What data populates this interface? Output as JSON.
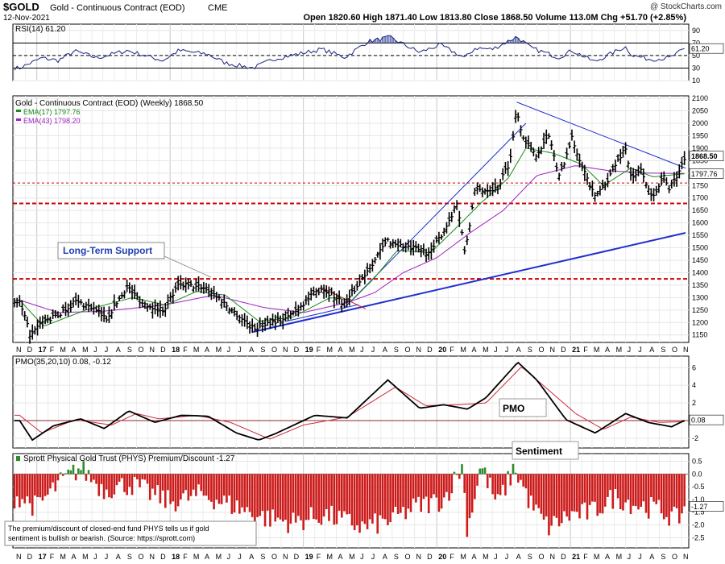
{
  "header": {
    "symbol": "$GOLD",
    "name": "Gold - Continuous Contract (EOD)",
    "exchange": "CME",
    "date": "12-Nov-2021",
    "watermark": "@ StockCharts.com",
    "ohlc": "Open 1820.60  High 1871.40  Low 1813.80  Close 1868.50  Volume 113.0M  Chg +51.70 (+2.85%)"
  },
  "rsi_panel": {
    "label": "RSI(14) 61.20",
    "ticks": [
      "90",
      "70",
      "50",
      "30",
      "10"
    ],
    "current_label": "61.20"
  },
  "price_panel": {
    "title": "Gold - Continuous Contract (EOD) (Weekly) 1868.50",
    "ema17_label": "EMA(17) 1797.76",
    "ema43_label": "EMA(43) 1798.20",
    "ticks": [
      "2100",
      "2050",
      "2000",
      "1950",
      "1900",
      "1850",
      "1800",
      "1750",
      "1700",
      "1650",
      "1600",
      "1550",
      "1500",
      "1450",
      "1400",
      "1350",
      "1300",
      "1250",
      "1200",
      "1150"
    ],
    "price_tag": "1868.50",
    "ema_tag": "1797.76",
    "annotation": "Long-Term Support"
  },
  "time_axis": {
    "labels": [
      "N",
      "D",
      "17",
      "F",
      "M",
      "A",
      "M",
      "J",
      "J",
      "A",
      "S",
      "O",
      "N",
      "D",
      "18",
      "F",
      "M",
      "A",
      "M",
      "J",
      "J",
      "A",
      "S",
      "O",
      "N",
      "D",
      "19",
      "F",
      "M",
      "A",
      "M",
      "J",
      "J",
      "A",
      "S",
      "O",
      "N",
      "D",
      "20",
      "F",
      "M",
      "A",
      "M",
      "J",
      "J",
      "A",
      "S",
      "O",
      "N",
      "D",
      "21",
      "F",
      "M",
      "A",
      "M",
      "J",
      "J",
      "A",
      "S",
      "O",
      "N"
    ]
  },
  "pmo_panel": {
    "label": "PMO(35,20,10) 0.08, -0.12",
    "ticks": [
      "6",
      "4",
      "2",
      "0",
      "-2"
    ],
    "current_label": "0.08",
    "annotation": "PMO"
  },
  "sentiment_panel": {
    "label": "Sprott Physical Gold Trust (PHYS) Premium/Discount -1.27",
    "ticks": [
      "0.5",
      "0.0",
      "-0.5",
      "-1.0",
      "-1.5",
      "-2.0",
      "-2.5"
    ],
    "current_label": "-1.27",
    "annotation": "Sentiment",
    "note_line1": "The premium/discount of closed-end fund PHYS tells us if gold",
    "note_line2": "sentiment is bullish or bearish. (Source: https://sprott.com)"
  },
  "colors": {
    "ema17": "#1a8a1a",
    "ema43": "#a020c0",
    "rsi_line": "#1a237e",
    "trend_line": "#1f2fcf",
    "support_red": "#cc0000",
    "pmo_black": "#000000",
    "pmo_signal": "#cc2a3a",
    "bar_red": "#cc1b1b",
    "bar_green": "#2e8b2e"
  },
  "chart_data": {
    "type": "ohlc",
    "x_range": [
      "2016-11-01",
      "2021-11-12"
    ],
    "y_range_price": [
      1120,
      2100
    ],
    "horizontal_levels": [
      1760,
      1678,
      1375
    ],
    "price_anchors": [
      [
        "2016-11-15",
        1280
      ],
      [
        "2016-12-15",
        1145
      ],
      [
        "2017-01-15",
        1200
      ],
      [
        "2017-03-01",
        1230
      ],
      [
        "2017-04-15",
        1285
      ],
      [
        "2017-06-01",
        1260
      ],
      [
        "2017-07-10",
        1215
      ],
      [
        "2017-09-05",
        1345
      ],
      [
        "2017-10-15",
        1280
      ],
      [
        "2017-12-12",
        1250
      ],
      [
        "2018-01-25",
        1350
      ],
      [
        "2018-04-10",
        1340
      ],
      [
        "2018-05-20",
        1290
      ],
      [
        "2018-08-16",
        1175
      ],
      [
        "2018-10-05",
        1205
      ],
      [
        "2018-11-15",
        1215
      ],
      [
        "2019-01-10",
        1290
      ],
      [
        "2019-02-20",
        1340
      ],
      [
        "2019-04-25",
        1275
      ],
      [
        "2019-06-25",
        1410
      ],
      [
        "2019-08-20",
        1530
      ],
      [
        "2019-10-10",
        1500
      ],
      [
        "2019-12-15",
        1480
      ],
      [
        "2020-01-25",
        1580
      ],
      [
        "2020-02-25",
        1680
      ],
      [
        "2020-03-18",
        1480
      ],
      [
        "2020-04-15",
        1730
      ],
      [
        "2020-06-15",
        1740
      ],
      [
        "2020-07-20",
        1850
      ],
      [
        "2020-08-07",
        2070
      ],
      [
        "2020-08-20",
        1960
      ],
      [
        "2020-09-25",
        1870
      ],
      [
        "2020-11-05",
        1950
      ],
      [
        "2020-11-30",
        1780
      ],
      [
        "2021-01-05",
        1940
      ],
      [
        "2021-03-08",
        1700
      ],
      [
        "2021-04-15",
        1780
      ],
      [
        "2021-05-31",
        1905
      ],
      [
        "2021-06-18",
        1770
      ],
      [
        "2021-07-15",
        1815
      ],
      [
        "2021-08-09",
        1700
      ],
      [
        "2021-09-15",
        1790
      ],
      [
        "2021-09-29",
        1735
      ],
      [
        "2021-10-20",
        1790
      ],
      [
        "2021-11-12",
        1868.5
      ]
    ],
    "rsi_anchors": [
      [
        "2016-11-15",
        30
      ],
      [
        "2017-01-15",
        46
      ],
      [
        "2017-03-01",
        42
      ],
      [
        "2017-04-15",
        57
      ],
      [
        "2017-06-15",
        46
      ],
      [
        "2017-09-05",
        58
      ],
      [
        "2017-12-12",
        42
      ],
      [
        "2018-01-25",
        58
      ],
      [
        "2018-04-15",
        52
      ],
      [
        "2018-06-01",
        38
      ],
      [
        "2018-08-16",
        30
      ],
      [
        "2018-10-15",
        45
      ],
      [
        "2019-02-20",
        60
      ],
      [
        "2019-04-25",
        47
      ],
      [
        "2019-06-25",
        72
      ],
      [
        "2019-08-25",
        79
      ],
      [
        "2019-11-15",
        55
      ],
      [
        "2020-01-10",
        67
      ],
      [
        "2020-03-18",
        46
      ],
      [
        "2020-04-15",
        62
      ],
      [
        "2020-06-01",
        60
      ],
      [
        "2020-08-07",
        80
      ],
      [
        "2020-09-15",
        62
      ],
      [
        "2020-11-30",
        47
      ],
      [
        "2021-01-05",
        58
      ],
      [
        "2021-03-08",
        40
      ],
      [
        "2021-05-31",
        64
      ],
      [
        "2021-06-20",
        50
      ],
      [
        "2021-08-09",
        44
      ],
      [
        "2021-09-29",
        46
      ],
      [
        "2021-11-12",
        61.2
      ]
    ],
    "ema17_anchors": [
      [
        "2016-11-15",
        1290
      ],
      [
        "2017-01-20",
        1185
      ],
      [
        "2017-05-15",
        1250
      ],
      [
        "2017-09-20",
        1300
      ],
      [
        "2017-12-20",
        1270
      ],
      [
        "2018-03-15",
        1325
      ],
      [
        "2018-06-01",
        1310
      ],
      [
        "2018-09-01",
        1205
      ],
      [
        "2018-12-01",
        1220
      ],
      [
        "2019-03-15",
        1300
      ],
      [
        "2019-05-15",
        1290
      ],
      [
        "2019-07-15",
        1380
      ],
      [
        "2019-09-15",
        1490
      ],
      [
        "2019-12-15",
        1480
      ],
      [
        "2020-03-01",
        1590
      ],
      [
        "2020-05-01",
        1680
      ],
      [
        "2020-07-15",
        1780
      ],
      [
        "2020-09-01",
        1900
      ],
      [
        "2020-11-15",
        1880
      ],
      [
        "2021-02-01",
        1835
      ],
      [
        "2021-04-01",
        1750
      ],
      [
        "2021-06-15",
        1820
      ],
      [
        "2021-08-15",
        1785
      ],
      [
        "2021-11-12",
        1797.76
      ]
    ],
    "ema43_anchors": [
      [
        "2016-11-15",
        1290
      ],
      [
        "2017-03-01",
        1240
      ],
      [
        "2017-07-01",
        1245
      ],
      [
        "2017-12-15",
        1270
      ],
      [
        "2018-05-01",
        1310
      ],
      [
        "2018-09-15",
        1260
      ],
      [
        "2019-01-01",
        1240
      ],
      [
        "2019-05-01",
        1280
      ],
      [
        "2019-07-15",
        1320
      ],
      [
        "2019-10-01",
        1400
      ],
      [
        "2020-01-01",
        1460
      ],
      [
        "2020-04-01",
        1560
      ],
      [
        "2020-07-01",
        1650
      ],
      [
        "2020-10-01",
        1790
      ],
      [
        "2021-01-15",
        1830
      ],
      [
        "2021-04-15",
        1810
      ],
      [
        "2021-08-01",
        1800
      ],
      [
        "2021-11-12",
        1798.2
      ]
    ],
    "pmo_anchors": [
      [
        "2016-11-15",
        0
      ],
      [
        "2016-12-20",
        -2.2
      ],
      [
        "2017-02-15",
        -0.6
      ],
      [
        "2017-05-01",
        0.2
      ],
      [
        "2017-07-05",
        -0.9
      ],
      [
        "2017-09-10",
        1.1
      ],
      [
        "2017-11-20",
        -0.2
      ],
      [
        "2018-02-01",
        0.6
      ],
      [
        "2018-04-15",
        0.5
      ],
      [
        "2018-07-01",
        -1.4
      ],
      [
        "2018-09-01",
        -2.2
      ],
      [
        "2018-10-15",
        -1.5
      ],
      [
        "2019-02-01",
        0.6
      ],
      [
        "2019-05-01",
        0.3
      ],
      [
        "2019-08-20",
        4.6
      ],
      [
        "2019-11-15",
        1.4
      ],
      [
        "2020-01-20",
        1.8
      ],
      [
        "2020-03-25",
        1.3
      ],
      [
        "2020-05-15",
        2.6
      ],
      [
        "2020-08-10",
        6.6
      ],
      [
        "2020-10-01",
        4.6
      ],
      [
        "2020-12-20",
        0.1
      ],
      [
        "2021-03-10",
        -1.4
      ],
      [
        "2021-06-01",
        0.8
      ],
      [
        "2021-08-01",
        -0.2
      ],
      [
        "2021-10-05",
        -0.7
      ],
      [
        "2021-11-12",
        0.08
      ]
    ],
    "pmo_signal_anchors": [
      [
        "2016-11-15",
        0.6
      ],
      [
        "2017-01-15",
        -1.4
      ],
      [
        "2017-04-15",
        0.1
      ],
      [
        "2017-07-25",
        -0.5
      ],
      [
        "2017-10-01",
        0.8
      ],
      [
        "2017-12-01",
        0.2
      ],
      [
        "2018-03-15",
        0.6
      ],
      [
        "2018-06-15",
        -0.2
      ],
      [
        "2018-10-01",
        -2.1
      ],
      [
        "2019-01-01",
        -0.5
      ],
      [
        "2019-05-01",
        0.4
      ],
      [
        "2019-09-10",
        3.8
      ],
      [
        "2019-12-01",
        1.7
      ],
      [
        "2020-03-01",
        1.8
      ],
      [
        "2020-05-15",
        2.0
      ],
      [
        "2020-08-20",
        6.1
      ],
      [
        "2020-11-01",
        3.5
      ],
      [
        "2021-01-15",
        0.8
      ],
      [
        "2021-04-01",
        -1.0
      ],
      [
        "2021-06-15",
        0.4
      ],
      [
        "2021-09-01",
        -0.2
      ],
      [
        "2021-11-12",
        -0.12
      ]
    ],
    "sentiment_anchors": [
      [
        "2016-11-15",
        -0.9
      ],
      [
        "2017-01-01",
        -1.3
      ],
      [
        "2017-03-01",
        -0.4
      ],
      [
        "2017-05-01",
        0.25
      ],
      [
        "2017-07-01",
        -0.6
      ],
      [
        "2017-09-15",
        -0.4
      ],
      [
        "2018-01-01",
        -1.1
      ],
      [
        "2018-04-01",
        -0.8
      ],
      [
        "2018-07-01",
        -1.3
      ],
      [
        "2018-09-15",
        -1.7
      ],
      [
        "2018-12-01",
        -1.9
      ],
      [
        "2019-03-01",
        -1.6
      ],
      [
        "2019-06-15",
        -2.1
      ],
      [
        "2019-09-01",
        -1.8
      ],
      [
        "2019-11-01",
        -1.3
      ],
      [
        "2020-01-20",
        -1.0
      ],
      [
        "2020-03-10",
        0.3
      ],
      [
        "2020-03-25",
        -2.2
      ],
      [
        "2020-05-01",
        0.35
      ],
      [
        "2020-06-15",
        -1.2
      ],
      [
        "2020-08-01",
        0.25
      ],
      [
        "2020-09-15",
        -1.2
      ],
      [
        "2020-11-01",
        -2.1
      ],
      [
        "2021-01-01",
        -1.6
      ],
      [
        "2021-03-01",
        -1.5
      ],
      [
        "2021-05-01",
        -0.9
      ],
      [
        "2021-07-01",
        -1.2
      ],
      [
        "2021-09-01",
        -1.4
      ],
      [
        "2021-10-20",
        -1.8
      ],
      [
        "2021-11-12",
        -1.27
      ]
    ]
  }
}
